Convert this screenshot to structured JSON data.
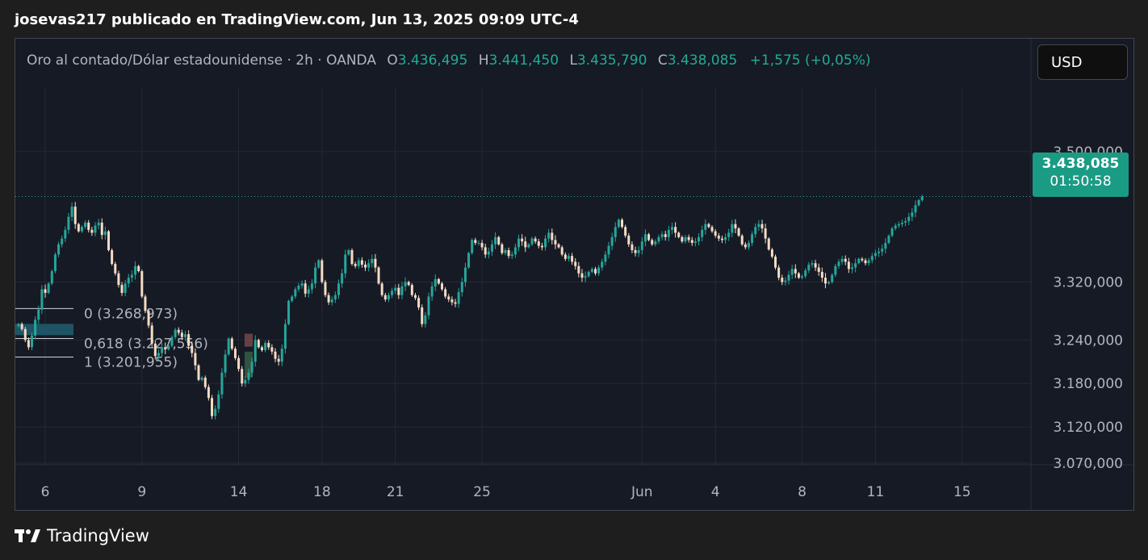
{
  "header": {
    "publisher": "josevas217 publicado en TradingView.com, Jun 13, 2025 09:09 UTC-4"
  },
  "legend": {
    "symbol": "Oro al contado/Dólar estadounidense · 2h · OANDA",
    "o_key": "O",
    "o": "3.436,495",
    "h_key": "H",
    "h": "3.441,450",
    "l_key": "L",
    "l": "3.435,790",
    "c_key": "C",
    "c": "3.438,085",
    "change": "+1,575 (+0,05%)"
  },
  "currency_button": "USD",
  "last_price": {
    "price": "3.438,085",
    "countdown": "01:50:58"
  },
  "footer": {
    "brand": "TradingView"
  },
  "colors": {
    "up": "#26a69a",
    "down": "#f5dcc4",
    "background": "#161a25",
    "grid": "#242936"
  },
  "chart_data": {
    "type": "candlestick",
    "ylim": [
      3070,
      3550
    ],
    "y_ticks": [
      {
        "value": 3500,
        "label": "3.500,000"
      },
      {
        "value": 3320,
        "label": "3.320,000"
      },
      {
        "value": 3240,
        "label": "3.240,000"
      },
      {
        "value": 3180,
        "label": "3.180,000"
      },
      {
        "value": 3120,
        "label": "3.120,000"
      },
      {
        "value": 3070,
        "label": "3.070,000"
      }
    ],
    "x_ticks": [
      {
        "bar": 8,
        "label": "6"
      },
      {
        "bar": 37,
        "label": "9"
      },
      {
        "bar": 66,
        "label": "14"
      },
      {
        "bar": 91,
        "label": "18"
      },
      {
        "bar": 113,
        "label": "21"
      },
      {
        "bar": 139,
        "label": "25"
      },
      {
        "bar": 187,
        "label": "Jun"
      },
      {
        "bar": 209,
        "label": "4"
      },
      {
        "bar": 235,
        "label": "8"
      },
      {
        "bar": 257,
        "label": "11"
      },
      {
        "bar": 283,
        "label": "15"
      }
    ],
    "last_close": 3438.085,
    "fib_levels": [
      {
        "ratio": "0",
        "label": "0 (3.268,973)",
        "value": 3268.973
      },
      {
        "ratio": "0.618",
        "label": "0,618 (3.227,556)",
        "value": 3227.556
      },
      {
        "ratio": "1",
        "label": "1 (3.201,955)",
        "value": 3201.955
      }
    ],
    "closes": [
      3262,
      3255,
      3240,
      3230,
      3246,
      3268,
      3282,
      3310,
      3305,
      3318,
      3335,
      3358,
      3372,
      3380,
      3392,
      3410,
      3424,
      3400,
      3390,
      3396,
      3402,
      3392,
      3388,
      3398,
      3402,
      3385,
      3390,
      3364,
      3345,
      3332,
      3316,
      3305,
      3318,
      3326,
      3330,
      3342,
      3335,
      3300,
      3280,
      3260,
      3235,
      3218,
      3222,
      3230,
      3227,
      3232,
      3244,
      3254,
      3250,
      3244,
      3248,
      3232,
      3222,
      3205,
      3185,
      3188,
      3175,
      3160,
      3135,
      3145,
      3165,
      3195,
      3220,
      3242,
      3228,
      3215,
      3200,
      3180,
      3185,
      3195,
      3210,
      3240,
      3230,
      3226,
      3236,
      3230,
      3224,
      3214,
      3210,
      3228,
      3262,
      3294,
      3300,
      3310,
      3315,
      3318,
      3304,
      3310,
      3318,
      3340,
      3350,
      3320,
      3302,
      3292,
      3296,
      3302,
      3318,
      3332,
      3358,
      3364,
      3345,
      3342,
      3350,
      3344,
      3340,
      3346,
      3352,
      3340,
      3318,
      3302,
      3296,
      3302,
      3308,
      3312,
      3302,
      3314,
      3320,
      3316,
      3302,
      3298,
      3285,
      3262,
      3274,
      3300,
      3314,
      3324,
      3318,
      3310,
      3300,
      3296,
      3292,
      3290,
      3306,
      3320,
      3340,
      3360,
      3378,
      3374,
      3374,
      3368,
      3358,
      3362,
      3372,
      3382,
      3372,
      3360,
      3364,
      3356,
      3358,
      3368,
      3380,
      3376,
      3368,
      3372,
      3380,
      3376,
      3370,
      3368,
      3380,
      3388,
      3378,
      3372,
      3368,
      3358,
      3352,
      3356,
      3348,
      3342,
      3332,
      3326,
      3328,
      3334,
      3338,
      3332,
      3340,
      3348,
      3358,
      3370,
      3382,
      3396,
      3406,
      3396,
      3384,
      3372,
      3364,
      3360,
      3364,
      3376,
      3386,
      3378,
      3372,
      3376,
      3382,
      3386,
      3382,
      3392,
      3396,
      3388,
      3382,
      3376,
      3382,
      3378,
      3374,
      3376,
      3382,
      3392,
      3400,
      3396,
      3390,
      3384,
      3380,
      3378,
      3382,
      3388,
      3400,
      3394,
      3384,
      3372,
      3368,
      3374,
      3386,
      3396,
      3400,
      3394,
      3380,
      3365,
      3355,
      3340,
      3326,
      3320,
      3322,
      3330,
      3338,
      3332,
      3326,
      3328,
      3336,
      3344,
      3346,
      3340,
      3334,
      3326,
      3318,
      3320,
      3330,
      3342,
      3348,
      3352,
      3348,
      3338,
      3340,
      3346,
      3352,
      3350,
      3346,
      3350,
      3356,
      3360,
      3362,
      3366,
      3374,
      3384,
      3394,
      3398,
      3400,
      3402,
      3404,
      3410,
      3416,
      3426,
      3433,
      3438
    ]
  }
}
